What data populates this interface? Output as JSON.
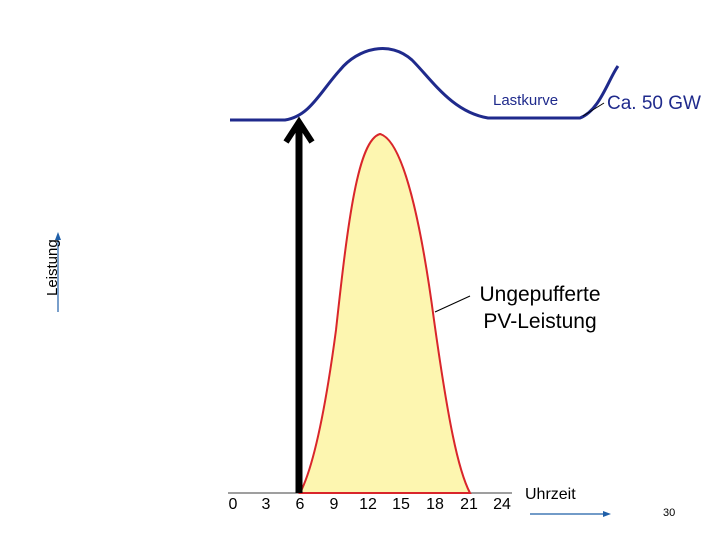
{
  "axes": {
    "y_label": "Leistung",
    "x_label": "Uhrzeit",
    "x_ticks": [
      "0",
      "3",
      "6",
      "9",
      "12",
      "15",
      "18",
      "21",
      "24"
    ]
  },
  "labels": {
    "load_curve": "Lastkurve",
    "load_value": "Ca. 50 GW",
    "pv_line1": "Ungepufferte",
    "pv_line2": "PV-Leistung"
  },
  "page_number": "30",
  "colors": {
    "load_curve": "#1f2a8c",
    "pv_fill": "#fdf6b0",
    "pv_stroke": "#d9262b",
    "axis": "#1f5fa8",
    "arrow": "#000000"
  }
}
